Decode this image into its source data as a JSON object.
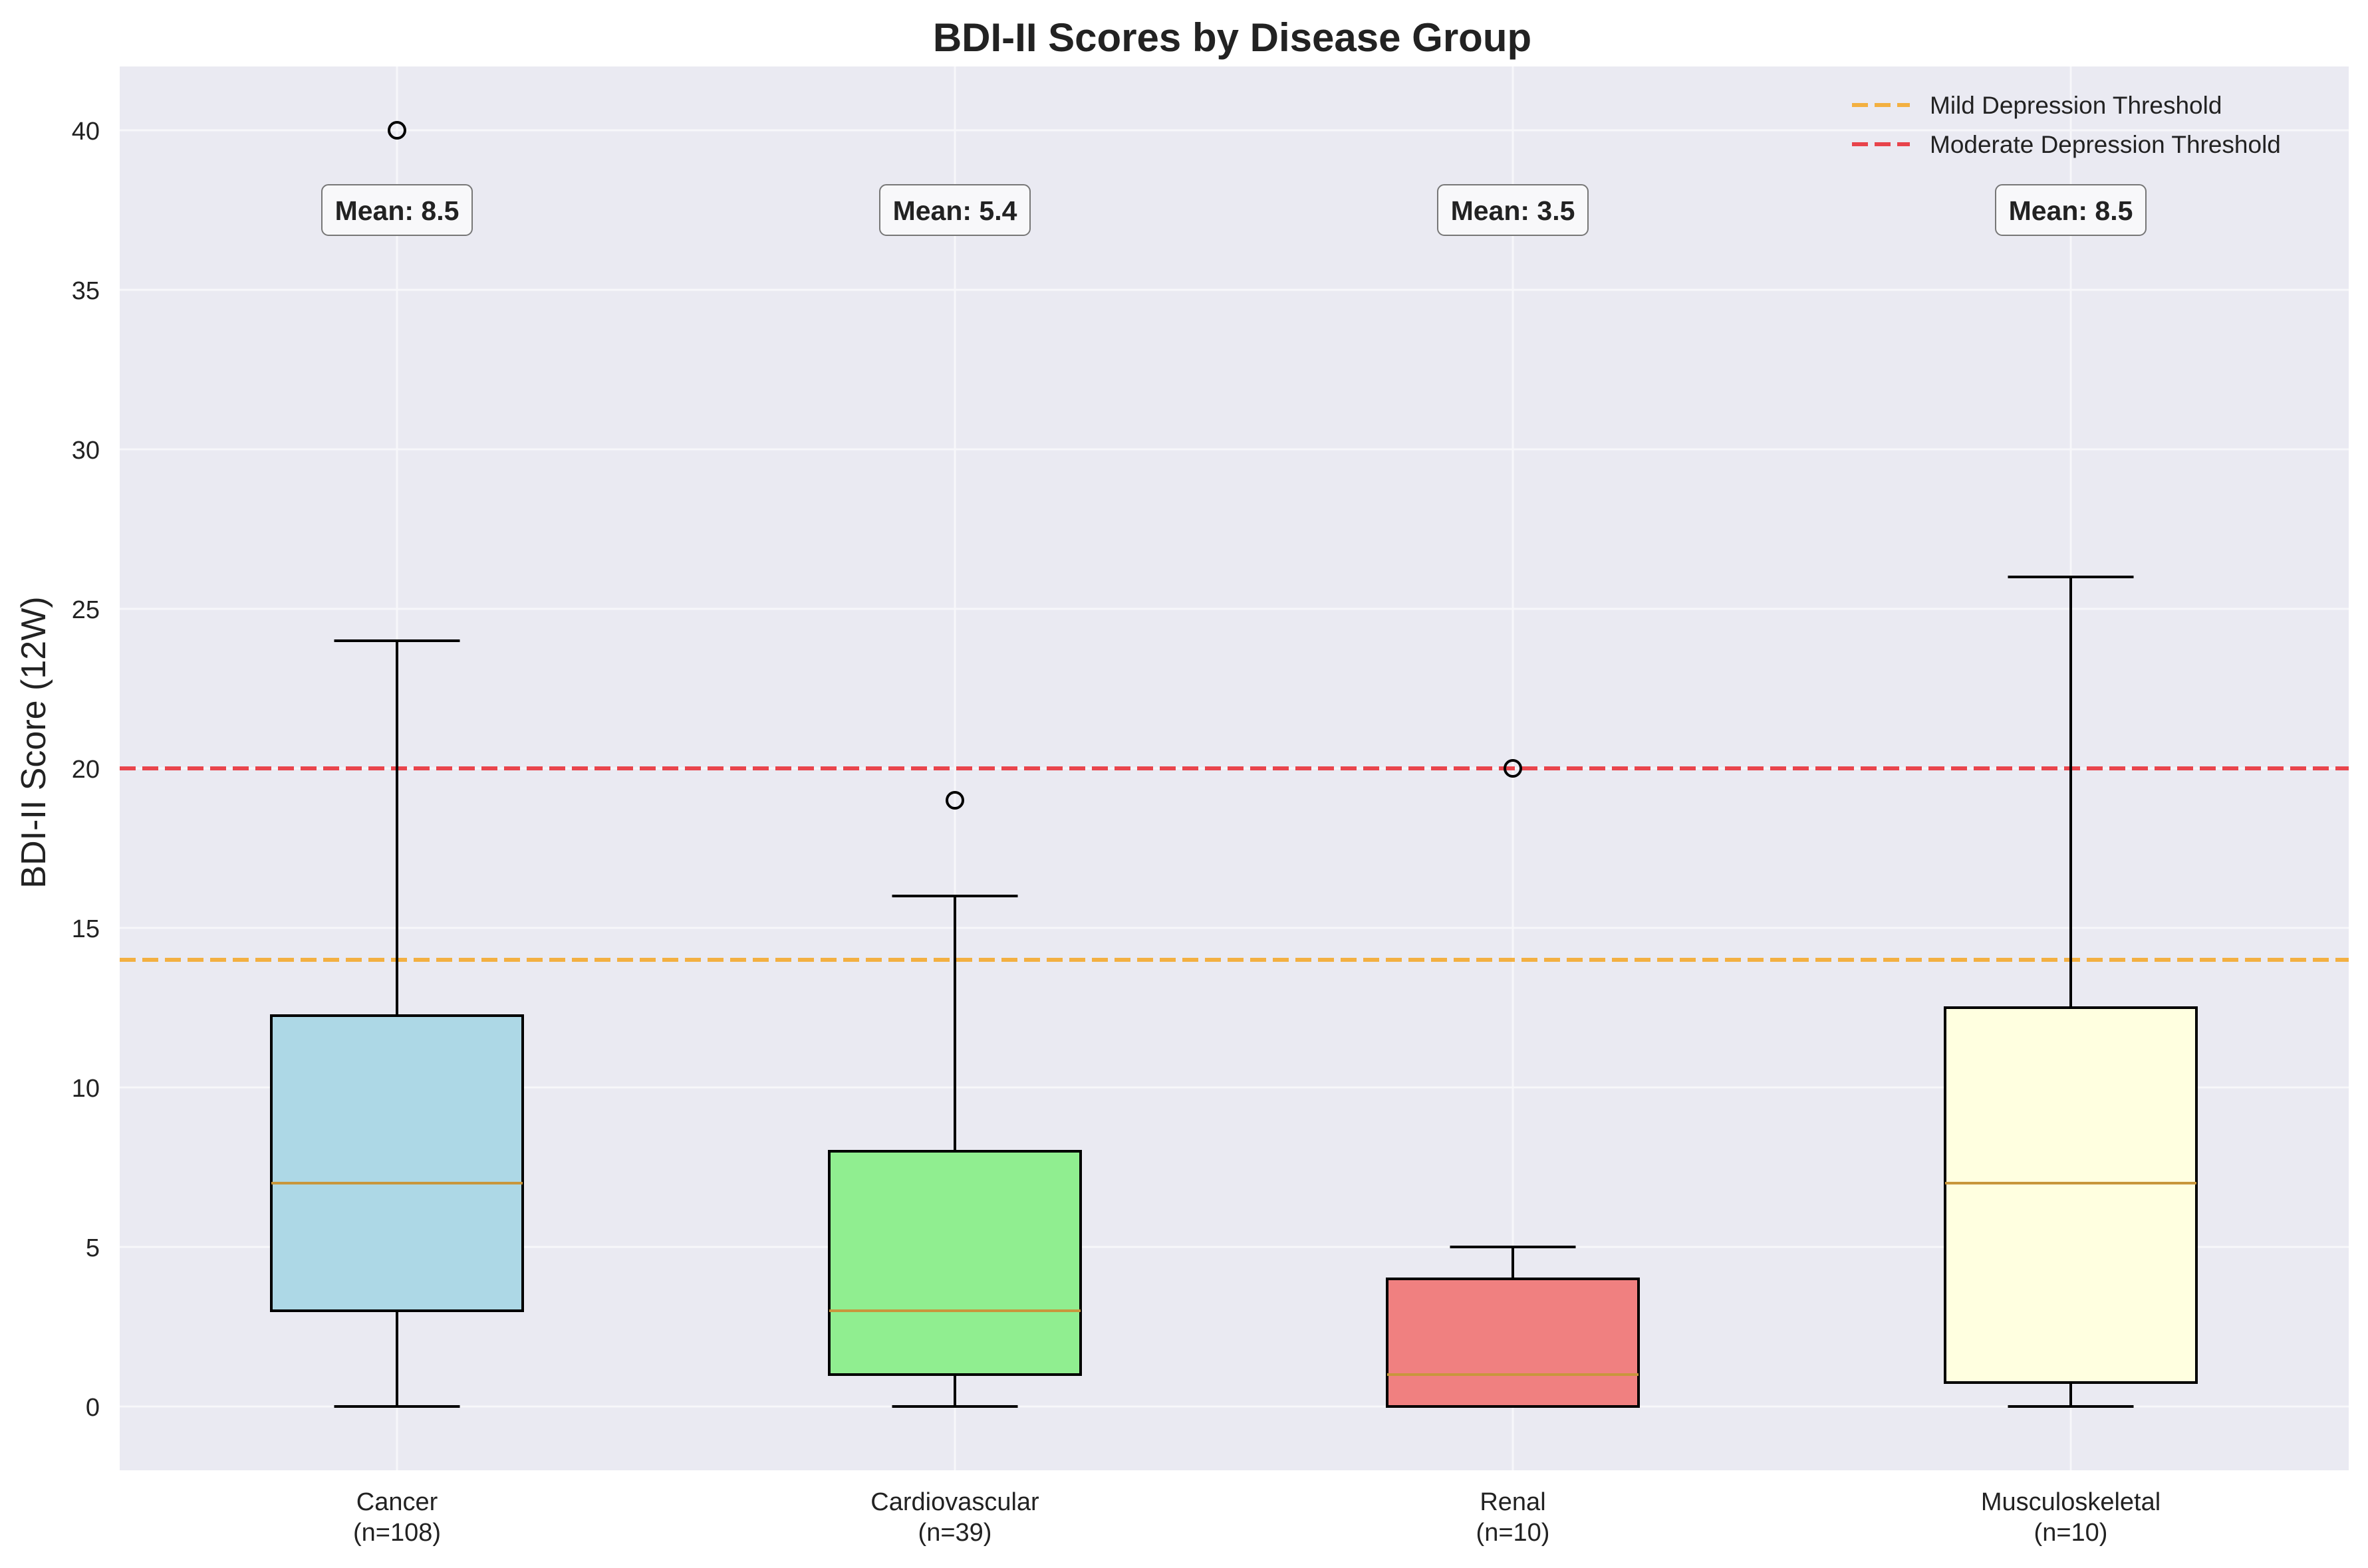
{
  "chart_data": {
    "type": "box",
    "title": "BDI-II Scores by Disease Group",
    "xlabel": "",
    "ylabel": "BDI-II Score (12W)",
    "ylim": [
      -2,
      42
    ],
    "yticks": [
      0,
      5,
      10,
      15,
      20,
      25,
      30,
      35,
      40
    ],
    "grid": true,
    "legend_position": "top-right",
    "groups": [
      {
        "label": "Cancer",
        "n_label": "(n=108)",
        "color": "#add8e6",
        "whisker_low": 0,
        "q1": 3,
        "median": 7,
        "q3": 12.25,
        "whisker_high": 24,
        "outliers": [
          40
        ],
        "mean_label": "Mean: 8.5"
      },
      {
        "label": "Cardiovascular",
        "n_label": "(n=39)",
        "color": "#90ee90",
        "whisker_low": 0,
        "q1": 1,
        "median": 3,
        "q3": 8,
        "whisker_high": 16,
        "outliers": [
          19
        ],
        "mean_label": "Mean: 5.4"
      },
      {
        "label": "Renal",
        "n_label": "(n=10)",
        "color": "#f08080",
        "whisker_low": 0,
        "q1": 0,
        "median": 1,
        "q3": 4,
        "whisker_high": 5,
        "outliers": [
          20
        ],
        "mean_label": "Mean: 3.5"
      },
      {
        "label": "Musculoskeletal",
        "n_label": "(n=10)",
        "color": "#ffffe0",
        "whisker_low": 0,
        "q1": 0.75,
        "median": 7,
        "q3": 12.5,
        "whisker_high": 26,
        "outliers": [],
        "mean_label": "Mean: 8.5"
      }
    ],
    "thresholds": [
      {
        "name": "Mild Depression Threshold",
        "value": 14,
        "color": "#f5a623"
      },
      {
        "name": "Moderate Depression Threshold",
        "value": 20,
        "color": "#e8262e"
      }
    ],
    "colors": {
      "plot_background": "#eaeaf2",
      "grid": "#f7f7fa",
      "median": "#c8963c",
      "box_edge": "#000000",
      "text": "#222222"
    }
  }
}
